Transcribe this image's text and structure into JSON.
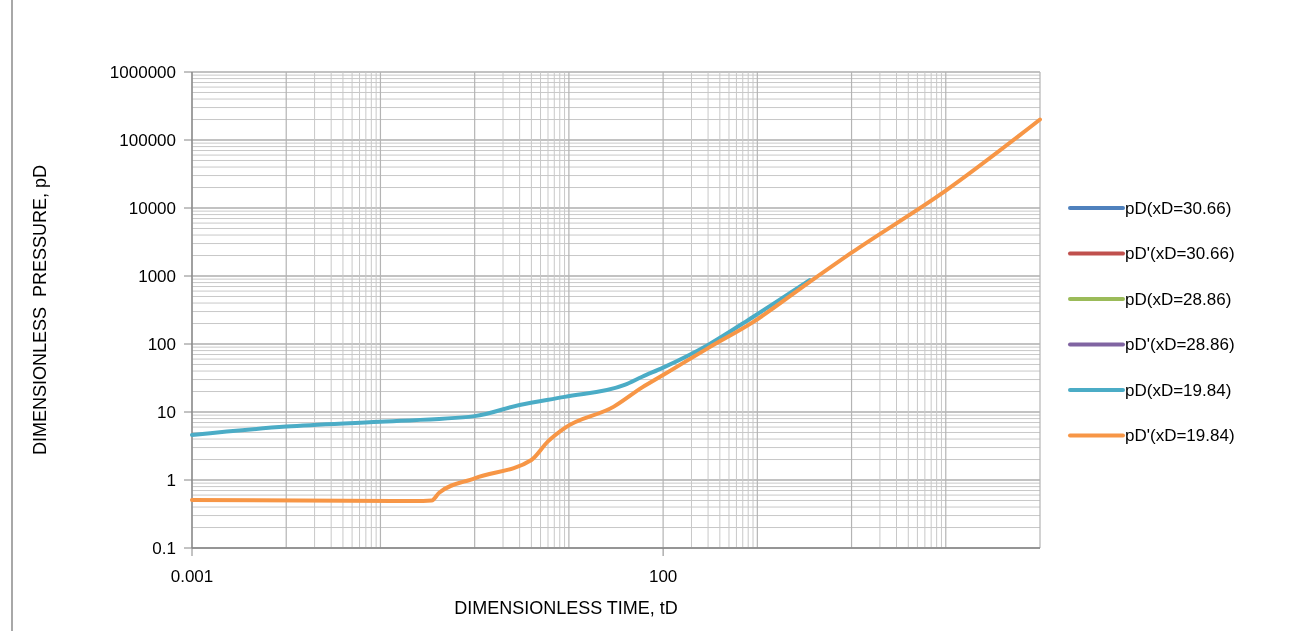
{
  "chart_data": {
    "type": "line",
    "xlabel": "DIMENSIONLESS TIME, tD",
    "ylabel": "DIMENSIONLESS  PRESSURE, pD",
    "log": "xy",
    "grid": true,
    "legend": "right",
    "xlim": [
      0.001,
      1000000
    ],
    "xticks": [
      0.001,
      100
    ],
    "ylim": [
      0.1,
      1000000
    ],
    "yticks": [
      0.1,
      1,
      10,
      100,
      1000,
      10000,
      100000,
      1000000
    ],
    "series": [
      {
        "name": "pD(xD=30.66)",
        "color": "#4f81bd"
      },
      {
        "name": "pD'(xD=30.66)",
        "color": "#c0504d"
      },
      {
        "name": "pD(xD=28.86)",
        "color": "#9bbb59"
      },
      {
        "name": "pD'(xD=28.86)",
        "color": "#8064a2"
      },
      {
        "name": "pD(xD=19.84)",
        "color": "#4bacc6",
        "x": [
          0.001,
          0.01,
          0.1,
          1,
          3,
          9,
          39,
          60,
          100,
          300,
          900,
          3600
        ],
        "values": [
          4.6,
          6.1,
          7.2,
          8.7,
          12.7,
          16.7,
          25,
          33,
          45,
          97,
          250,
          870
        ]
      },
      {
        "name": "pD'(xD=19.84)",
        "color": "#f79646",
        "x": [
          0.001,
          0.23,
          0.35,
          0.42,
          1,
          4,
          6,
          9,
          30,
          60,
          100,
          300,
          900,
          3600,
          10000,
          100000,
          1000000
        ],
        "values": [
          0.51,
          0.49,
          0.5,
          0.65,
          1.06,
          1.97,
          3.7,
          5.8,
          12,
          23,
          35,
          87,
          210,
          820,
          2200,
          18000,
          200000
        ]
      }
    ]
  }
}
